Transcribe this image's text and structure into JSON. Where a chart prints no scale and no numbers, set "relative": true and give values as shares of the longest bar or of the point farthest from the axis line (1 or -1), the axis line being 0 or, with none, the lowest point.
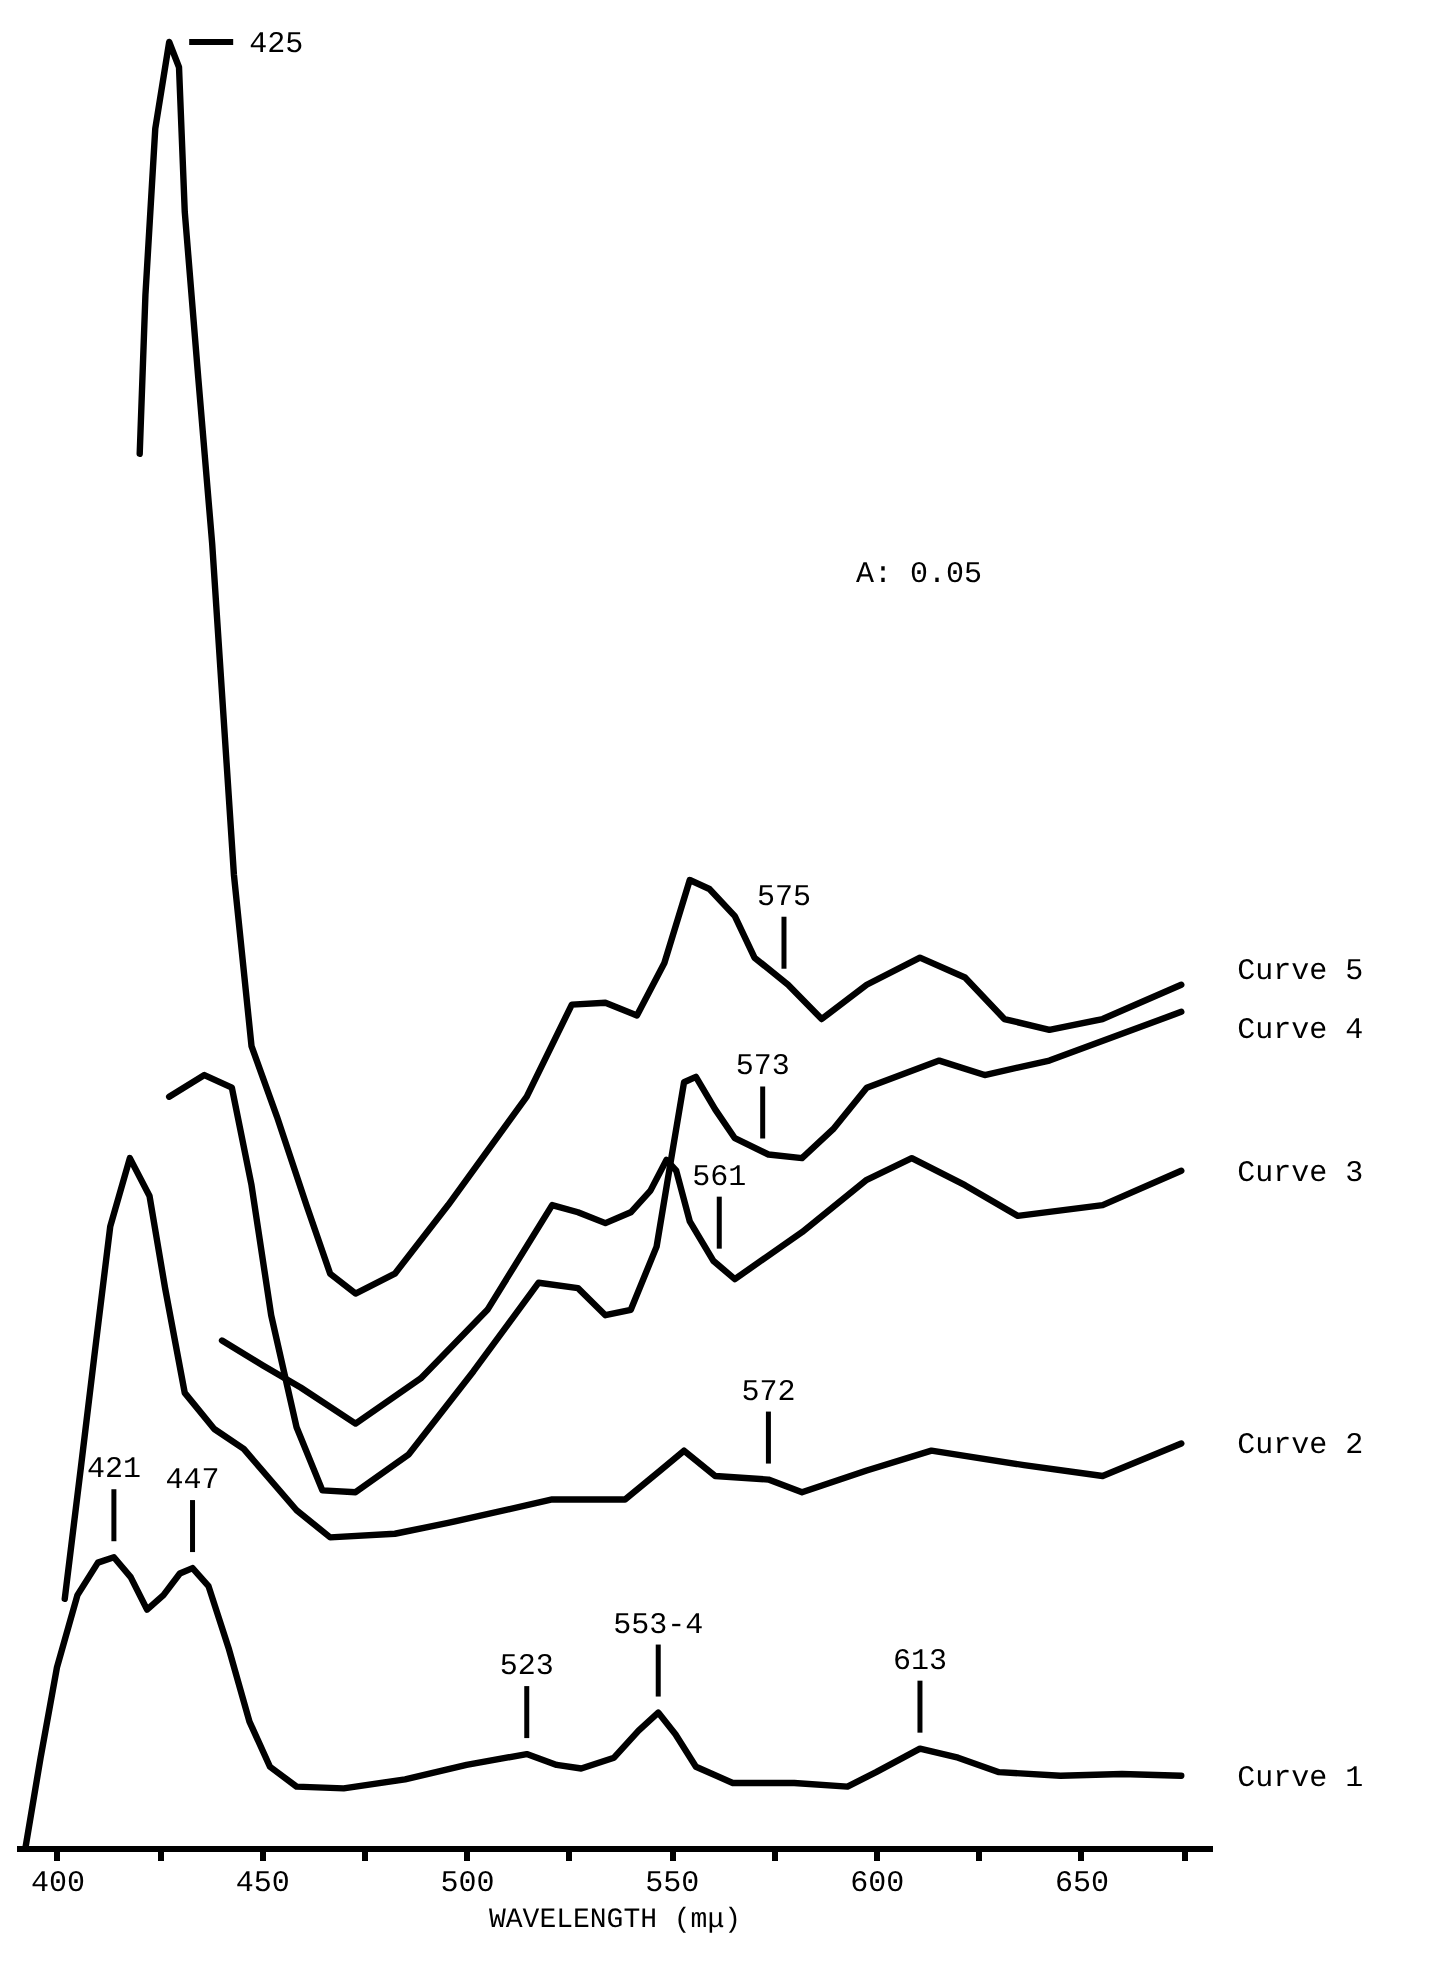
{
  "chart_data": {
    "type": "line",
    "xlabel": "WAVELENGTH (mμ)",
    "relative": true,
    "line_style": "solid",
    "xlim": [
      390,
      682
    ],
    "xticks": [
      400,
      {
        "value": 425,
        "label": null
      },
      450,
      {
        "value": 475,
        "label": null
      },
      500,
      {
        "value": 525,
        "label": null
      },
      550,
      {
        "value": 575,
        "label": null
      },
      600,
      {
        "value": 625,
        "label": null
      },
      650,
      {
        "value": 675,
        "label": null
      }
    ],
    "series": [
      {
        "name": "Curve 1",
        "color": "#000000",
        "x": [
          392.3,
          396,
          400,
          405,
          410,
          413.9,
          418,
          422,
          426,
          430,
          433.1,
          437,
          442,
          447,
          452,
          458.5,
          470,
          485,
          500,
          514.7,
          522,
          528,
          536,
          542,
          546.8,
          551,
          556,
          565,
          580,
          593,
          600,
          610.7,
          620,
          630,
          645,
          660,
          674.5
        ],
        "values": [
          0,
          0.05,
          0.1,
          0.14,
          0.158,
          0.161,
          0.15,
          0.132,
          0.14,
          0.152,
          0.155,
          0.145,
          0.11,
          0.07,
          0.045,
          0.034,
          0.033,
          0.038,
          0.046,
          0.052,
          0.046,
          0.044,
          0.05,
          0.065,
          0.075,
          0.063,
          0.045,
          0.036,
          0.036,
          0.034,
          0.042,
          0.055,
          0.05,
          0.042,
          0.04,
          0.041,
          0.04
        ]
      },
      {
        "name": "Curve 2",
        "color": "#000000",
        "x": [
          401.9,
          405.8,
          409.1,
          413.0,
          417.8,
          422.6,
          426.4,
          431.2,
          438.4,
          445.6,
          458.5,
          466.7,
          482.5,
          495.5,
          520.9,
          538.7,
          547.3,
          553.1,
          560.7,
          573.7,
          581.9,
          597.7,
          613.5,
          636.1,
          655.3,
          674.5
        ],
        "values": [
          0.138,
          0.21,
          0.272,
          0.344,
          0.382,
          0.361,
          0.31,
          0.252,
          0.232,
          0.221,
          0.187,
          0.172,
          0.174,
          0.18,
          0.193,
          0.193,
          0.209,
          0.22,
          0.206,
          0.204,
          0.197,
          0.209,
          0.22,
          0.212,
          0.206,
          0.224
        ]
      },
      {
        "name": "Curve 3",
        "color": "#000000",
        "x": [
          440.3,
          450.4,
          459.5,
          472.9,
          488.8,
          505.1,
          520.9,
          527.2,
          533.9,
          540.1,
          544.9,
          548.8,
          551.2,
          554.5,
          560.3,
          565.5,
          581.9,
          597.7,
          608.7,
          621.7,
          634.6,
          655.3,
          674.5
        ],
        "values": [
          0.281,
          0.267,
          0.255,
          0.235,
          0.26,
          0.298,
          0.356,
          0.352,
          0.346,
          0.352,
          0.364,
          0.381,
          0.375,
          0.347,
          0.325,
          0.315,
          0.341,
          0.37,
          0.382,
          0.367,
          0.35,
          0.356,
          0.375
        ]
      },
      {
        "name": "Curve 4",
        "color": "#000000",
        "x": [
          427.4,
          436.0,
          442.7,
          447.5,
          452.3,
          458.5,
          464.8,
          472.9,
          485.9,
          501.7,
          517.6,
          527.2,
          533.9,
          540.1,
          546.4,
          549.7,
          553.1,
          556.0,
          560.7,
          565.5,
          573.7,
          581.9,
          589.5,
          597.7,
          615.4,
          626.5,
          642.3,
          674.5
        ],
        "values": [
          0.416,
          0.428,
          0.421,
          0.367,
          0.295,
          0.233,
          0.198,
          0.197,
          0.218,
          0.264,
          0.313,
          0.31,
          0.295,
          0.298,
          0.333,
          0.378,
          0.424,
          0.427,
          0.409,
          0.393,
          0.384,
          0.382,
          0.398,
          0.421,
          0.436,
          0.428,
          0.436,
          0.463
        ]
      },
      {
        "name": "Curve 5",
        "color": "#000000",
        "x": [
          420.2,
          421.6,
          424.0,
          427.4,
          429.8,
          431.2,
          434.5,
          437.9,
          443.2,
          447.5,
          453.7,
          460.9,
          466.7,
          472.9,
          482.5,
          495.5,
          514.7,
          525.7,
          533.9,
          541.6,
          548.3,
          554.5,
          559.3,
          565.5,
          570.3,
          578.5,
          586.7,
          597.7,
          610.7,
          621.7,
          631.3,
          642.3,
          655.3,
          674.5
        ],
        "values": [
          0.772,
          0.86,
          0.952,
          1.0,
          0.986,
          0.906,
          0.814,
          0.722,
          0.539,
          0.444,
          0.405,
          0.356,
          0.318,
          0.307,
          0.318,
          0.356,
          0.416,
          0.467,
          0.468,
          0.461,
          0.49,
          0.536,
          0.531,
          0.516,
          0.493,
          0.478,
          0.459,
          0.478,
          0.493,
          0.482,
          0.459,
          0.453,
          0.459,
          0.478
        ]
      }
    ],
    "annotations": [
      {
        "text": "425",
        "x": 427.4,
        "y": 1.0
      },
      {
        "text": "421",
        "x": 413.9,
        "y": 0.161
      },
      {
        "text": "447",
        "x": 433.1,
        "y": 0.155
      },
      {
        "text": "523",
        "x": 514.7,
        "y": 0.052
      },
      {
        "text": "553-4",
        "x": 546.8,
        "y": 0.075
      },
      {
        "text": "613",
        "x": 610.7,
        "y": 0.055
      },
      {
        "text": "572",
        "x": 573.7,
        "y": 0.204
      },
      {
        "text": "561",
        "x": 561.7,
        "y": 0.323
      },
      {
        "text": "573",
        "x": 572.3,
        "y": 0.384
      },
      {
        "text": "575",
        "x": 577.5,
        "y": 0.478
      },
      "A: 0.05"
    ]
  }
}
